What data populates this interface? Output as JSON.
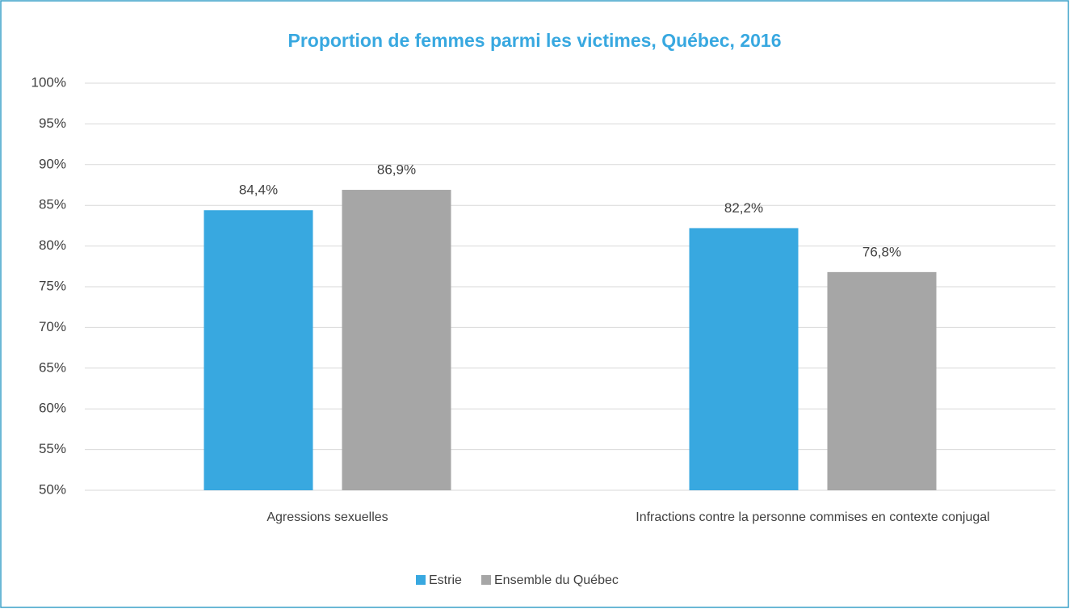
{
  "chart_data": {
    "type": "bar",
    "title": "Proportion de femmes parmi les victimes, Québec, 2016",
    "categories": [
      "Agressions sexuelles",
      "Infractions contre la personne commises en contexte conjugal"
    ],
    "series": [
      {
        "name": "Estrie",
        "color": "#38a8e0",
        "values": [
          84.4,
          82.2
        ],
        "value_labels": [
          "84,4%",
          "82,2%"
        ]
      },
      {
        "name": "Ensemble du Québec",
        "color": "#a6a6a6",
        "values": [
          86.9,
          76.8
        ],
        "value_labels": [
          "86,9%",
          "76,8%"
        ]
      }
    ],
    "ylim": [
      50,
      100
    ],
    "yticks": [
      {
        "value": 50,
        "label": "50%"
      },
      {
        "value": 55,
        "label": "55%"
      },
      {
        "value": 60,
        "label": "60%"
      },
      {
        "value": 65,
        "label": "65%"
      },
      {
        "value": 70,
        "label": "70%"
      },
      {
        "value": 75,
        "label": "75%"
      },
      {
        "value": 80,
        "label": "80%"
      },
      {
        "value": 85,
        "label": "85%"
      },
      {
        "value": 90,
        "label": "90%"
      },
      {
        "value": 95,
        "label": "95%"
      },
      {
        "value": 100,
        "label": "100%"
      }
    ],
    "grid": true,
    "legend": "bottom"
  }
}
